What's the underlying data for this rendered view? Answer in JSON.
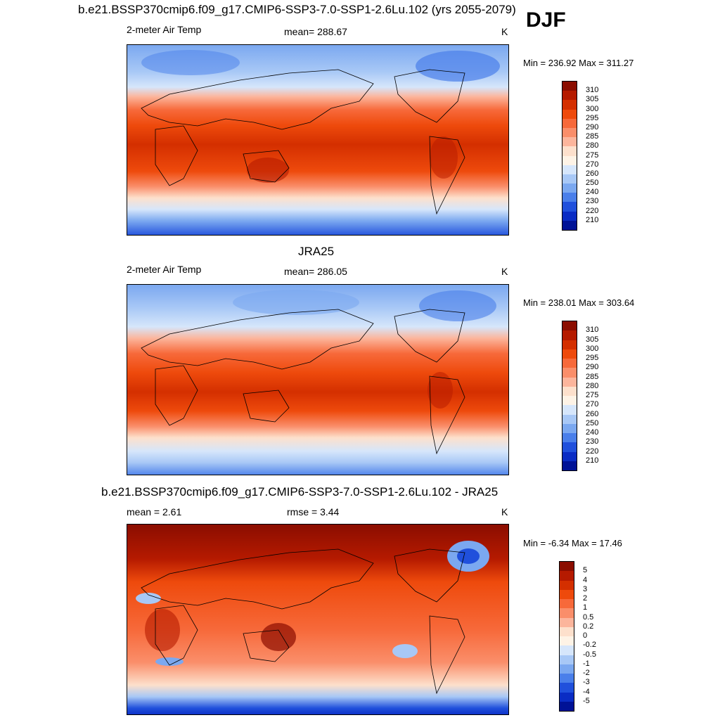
{
  "season": "DJF",
  "panels": [
    {
      "title": "b.e21.BSSP370cmip6.f09_g17.CMIP6-SSP3-7.0-SSP1-2.6Lu.102 (yrs 2055-2079)",
      "left": "2-meter Air Temp",
      "center": "mean= 288.67",
      "units": "K",
      "minmax": "Min = 236.92 Max = 311.27"
    },
    {
      "title": "JRA25",
      "left": "2-meter Air Temp",
      "center": "mean= 286.05",
      "units": "K",
      "minmax": "Min = 238.01 Max = 303.64"
    },
    {
      "title": "b.e21.BSSP370cmip6.f09_g17.CMIP6-SSP3-7.0-SSP1-2.6Lu.102 - JRA25",
      "left": "mean =   2.61",
      "center": "rmse =   3.44",
      "units": "K",
      "minmax": "Min =  -6.34 Max =  17.46"
    }
  ],
  "abs_colorbar": {
    "labels": [
      "310",
      "305",
      "300",
      "295",
      "290",
      "285",
      "280",
      "275",
      "270",
      "260",
      "250",
      "240",
      "230",
      "220",
      "210"
    ],
    "colors": [
      "#8b0d00",
      "#b51a00",
      "#d42f00",
      "#ee4a0c",
      "#f7693a",
      "#fa8e6a",
      "#fcb59c",
      "#fde0cc",
      "#fef3e6",
      "#d6e6fb",
      "#a8c8f6",
      "#7ba8f0",
      "#4a7fea",
      "#2050dc",
      "#0a2cc4",
      "#001296"
    ]
  },
  "diff_colorbar": {
    "labels": [
      "5",
      "4",
      "3",
      "2",
      "1",
      "0.5",
      "0.2",
      "0",
      "-0.2",
      "-0.5",
      "-1",
      "-2",
      "-3",
      "-4",
      "-5"
    ],
    "colors": [
      "#8b0d00",
      "#b51a00",
      "#d42f00",
      "#ee4a0c",
      "#f7693a",
      "#fa8e6a",
      "#fcb59c",
      "#fde0cc",
      "#fef3e6",
      "#d6e6fb",
      "#a8c8f6",
      "#7ba8f0",
      "#4a7fea",
      "#2050dc",
      "#0a2cc4",
      "#001296"
    ]
  }
}
